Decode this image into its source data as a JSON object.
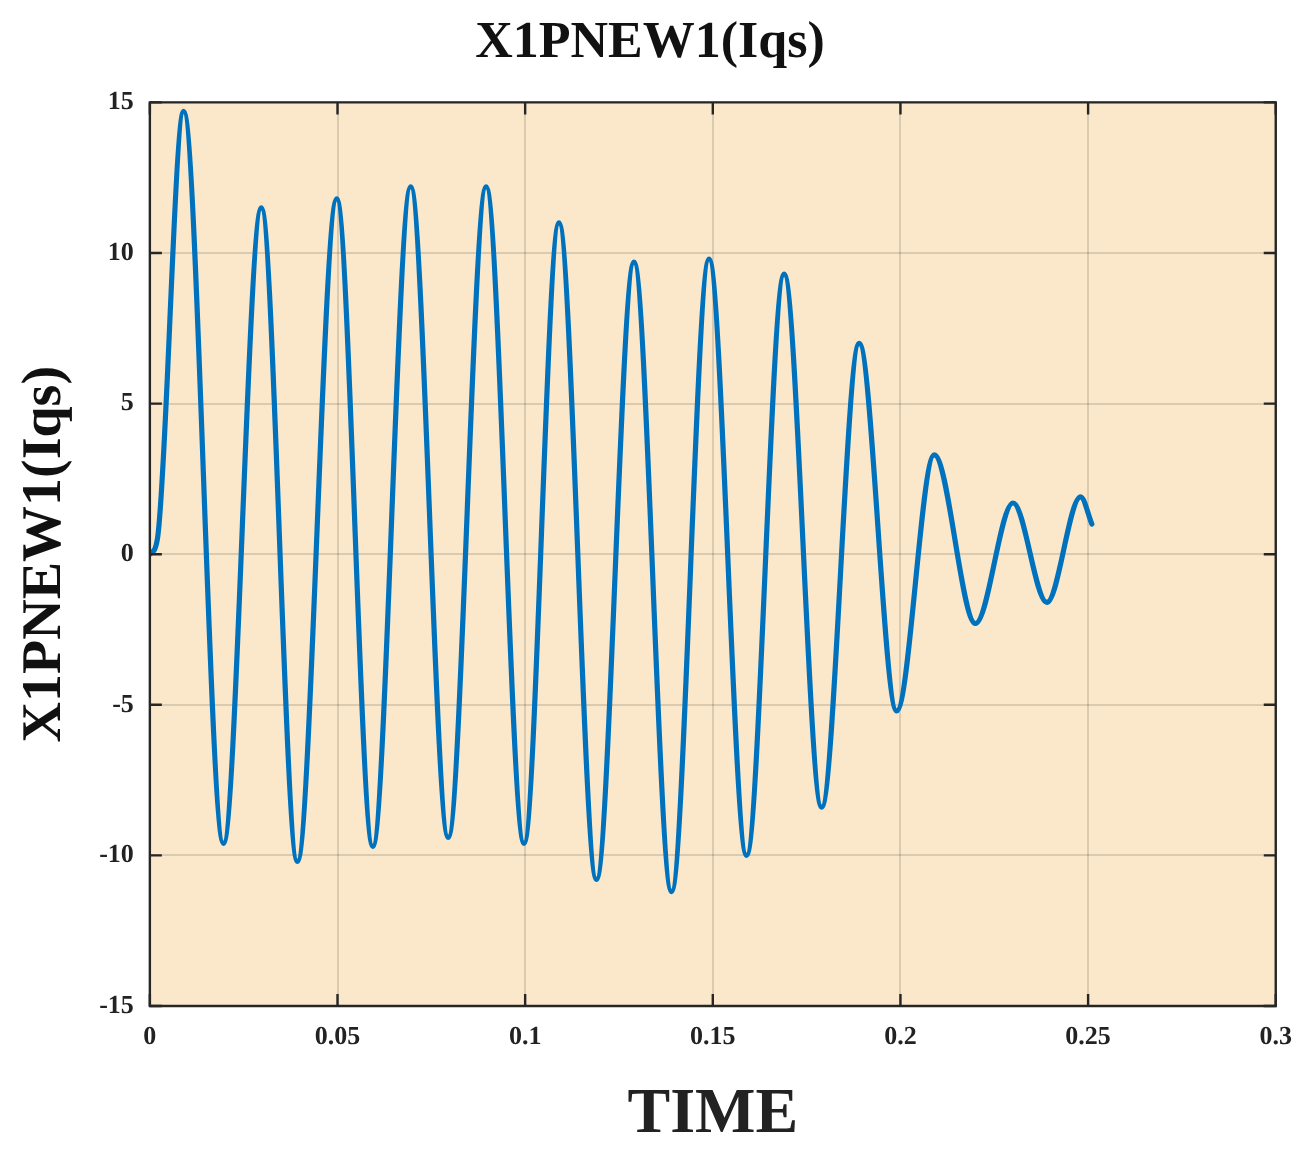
{
  "chart_data": {
    "type": "line",
    "title": "X1PNEW1(Iqs)",
    "xlabel": "TIME",
    "ylabel": "X1PNEW1(Iqs)",
    "series": [
      {
        "color": "#0072bd",
        "x": [
          0,
          0.002,
          0.009,
          0.0196,
          0.0297,
          0.0393,
          0.0498,
          0.0594,
          0.0695,
          0.0795,
          0.0896,
          0.0997,
          0.109,
          0.119,
          0.129,
          0.139,
          0.149,
          0.159,
          0.169,
          0.179,
          0.189,
          0.199,
          0.209,
          0.22,
          0.23,
          0.239,
          0.248,
          0.251
        ],
        "values": [
          0,
          0.5,
          14.7,
          -9.6,
          11.5,
          -10.2,
          11.8,
          -9.7,
          12.2,
          -9.4,
          12.2,
          -9.6,
          11.0,
          -10.8,
          9.7,
          -11.2,
          9.8,
          -10.0,
          9.3,
          -8.4,
          7.0,
          -5.2,
          3.3,
          -2.3,
          1.7,
          -1.6,
          1.9,
          1.0
        ]
      }
    ],
    "xlim": [
      0,
      0.3
    ],
    "xticks": [
      0,
      0.05,
      0.1,
      0.15,
      0.2,
      0.25,
      0.3
    ],
    "ylim": [
      -15,
      15
    ],
    "yticks": [
      -15,
      -10,
      -5,
      0,
      5,
      10,
      15
    ],
    "grid": true,
    "legend": false,
    "marker": "none",
    "line_style": "solid"
  }
}
